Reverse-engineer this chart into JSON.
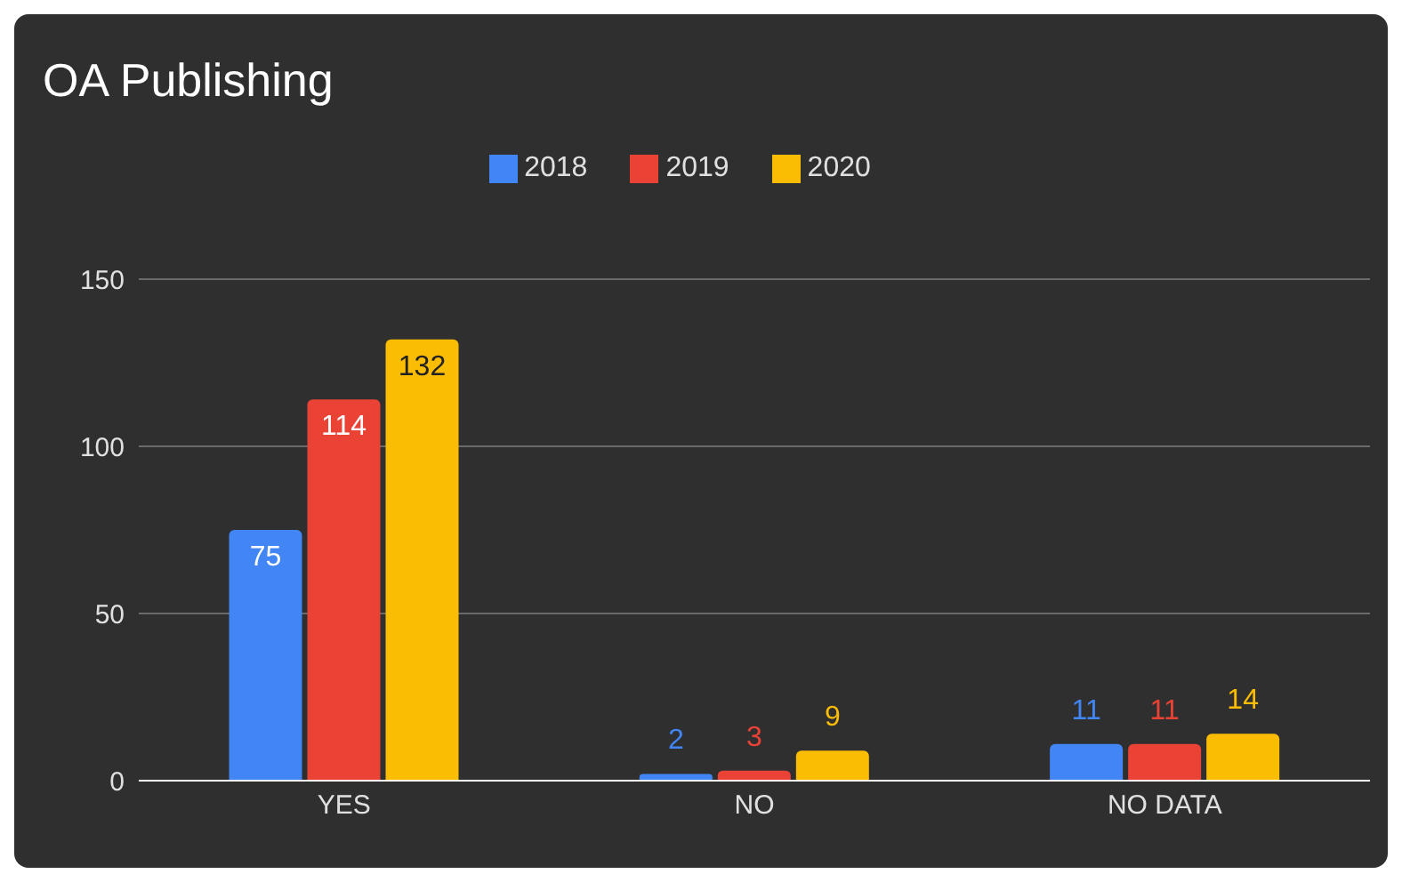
{
  "chart_data": {
    "type": "bar",
    "title": "OA Publishing",
    "categories": [
      "YES",
      "NO",
      "NO DATA"
    ],
    "series": [
      {
        "name": "2018",
        "color": "#4285f4",
        "values": [
          75,
          2,
          11
        ]
      },
      {
        "name": "2019",
        "color": "#ea4335",
        "values": [
          114,
          3,
          11
        ]
      },
      {
        "name": "2020",
        "color": "#fbbc04",
        "values": [
          132,
          9,
          14
        ]
      }
    ],
    "ylim": [
      0,
      150
    ],
    "yticks": [
      0,
      50,
      100,
      150
    ],
    "grid": "y",
    "legend": "top",
    "data_labels": true
  }
}
